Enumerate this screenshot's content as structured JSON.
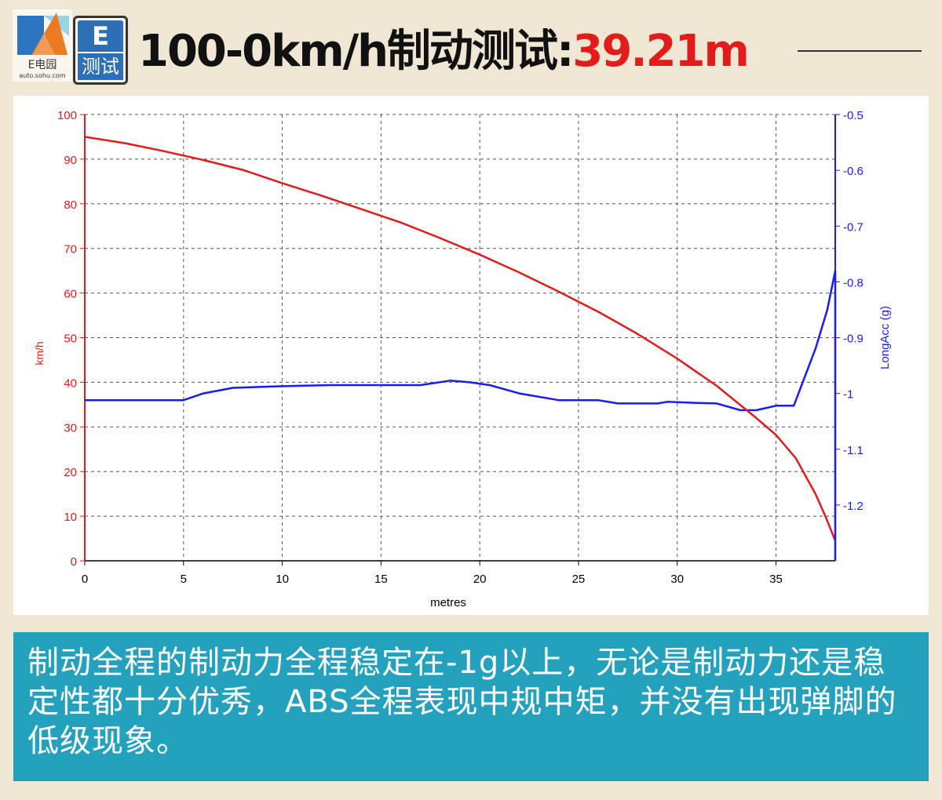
{
  "logo": {
    "brand": "E电园",
    "site": "auto.sohu.com"
  },
  "badge": {
    "top": "E",
    "bottom": "测试"
  },
  "title": {
    "main": "100-0km/h制动测试:",
    "result": "39.21m"
  },
  "colors": {
    "speed": "#e21b1b",
    "accel": "#1a1aff",
    "caption_bg": "#24a2bd",
    "title_result": "#e21b1b"
  },
  "caption": {
    "text": "制动全程的制动力全程稳定在-1g以上，无论是制动力还是稳定性都十分优秀，ABS全程表现中规中矩，并没有出现弹脚的低级现象。"
  },
  "chart_data": {
    "type": "line",
    "xlabel": "metres",
    "ylabel_left": "km/h",
    "ylabel_right": "LongAcc (g)",
    "xlim": [
      0,
      38
    ],
    "ylim_left": [
      0,
      100
    ],
    "ylim_right": [
      -0.5,
      -1.3
    ],
    "x_ticks": [
      0,
      5,
      10,
      15,
      20,
      25,
      30,
      35
    ],
    "y_ticks_left": [
      0,
      10,
      20,
      30,
      40,
      50,
      60,
      70,
      80,
      90,
      100
    ],
    "y_ticks_right": [
      -0.5,
      -0.6,
      -0.7,
      -0.8,
      -0.9,
      -1,
      -1.1,
      -1.2
    ],
    "grid": true,
    "series": [
      {
        "name": "km/h",
        "axis": "left",
        "color": "#e21b1b",
        "points": [
          [
            0,
            95
          ],
          [
            2,
            93.6
          ],
          [
            4,
            91.8
          ],
          [
            6,
            89.8
          ],
          [
            8,
            87.6
          ],
          [
            10,
            84.6
          ],
          [
            12,
            81.8
          ],
          [
            14,
            78.8
          ],
          [
            16,
            75.8
          ],
          [
            18,
            72.3
          ],
          [
            20,
            68.6
          ],
          [
            22,
            64.6
          ],
          [
            24,
            60.3
          ],
          [
            26,
            55.8
          ],
          [
            28,
            50.8
          ],
          [
            30,
            45.3
          ],
          [
            32,
            39.2
          ],
          [
            34,
            32.0
          ],
          [
            35,
            28.2
          ],
          [
            36,
            23.0
          ],
          [
            37,
            15.0
          ],
          [
            37.5,
            10.0
          ],
          [
            38,
            4.5
          ]
        ]
      },
      {
        "name": "LongAcc (g)",
        "axis": "right",
        "color": "#1a1aff",
        "points": [
          [
            0,
            -1.012
          ],
          [
            5,
            -1.012
          ],
          [
            6,
            -1.0
          ],
          [
            7.5,
            -0.99
          ],
          [
            10,
            -0.987
          ],
          [
            12.5,
            -0.985
          ],
          [
            15,
            -0.985
          ],
          [
            17,
            -0.985
          ],
          [
            18.5,
            -0.977
          ],
          [
            19.5,
            -0.98
          ],
          [
            20.5,
            -0.985
          ],
          [
            22,
            -1.0
          ],
          [
            24,
            -1.012
          ],
          [
            26,
            -1.012
          ],
          [
            27,
            -1.018
          ],
          [
            29,
            -1.018
          ],
          [
            29.5,
            -1.015
          ],
          [
            31,
            -1.017
          ],
          [
            32,
            -1.018
          ],
          [
            33.2,
            -1.03
          ],
          [
            34,
            -1.03
          ],
          [
            35,
            -1.022
          ],
          [
            35.9,
            -1.022
          ],
          [
            37,
            -0.92
          ],
          [
            37.6,
            -0.85
          ],
          [
            38,
            -0.78
          ]
        ]
      }
    ]
  }
}
